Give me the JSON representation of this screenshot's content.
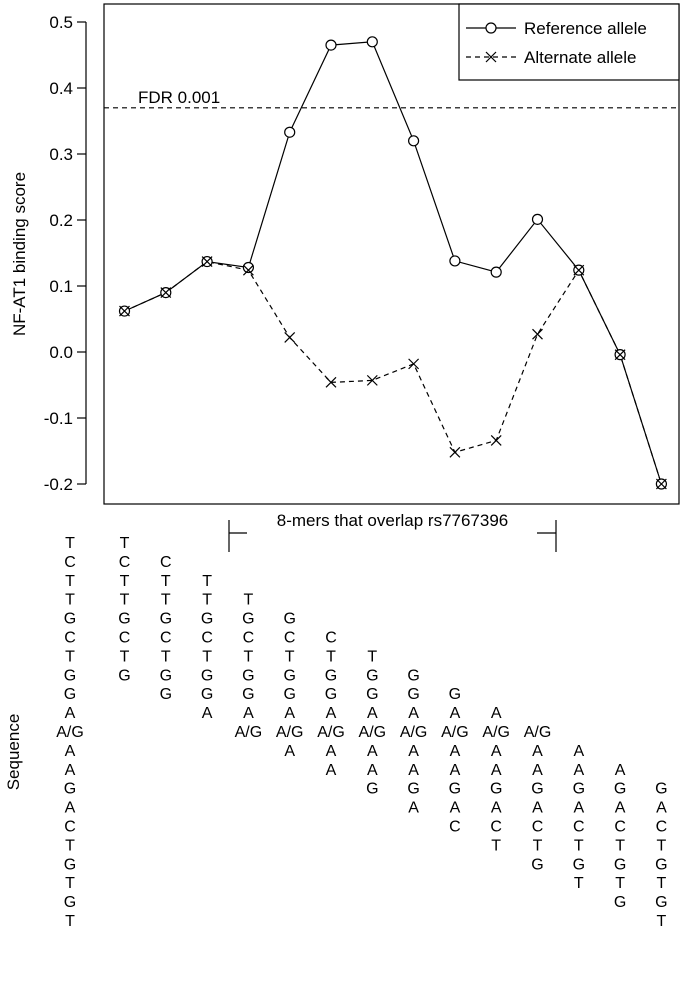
{
  "chart_data": {
    "type": "line",
    "ylabel": "NF-AT1 binding score",
    "ylim": [
      -0.22,
      0.52
    ],
    "yticks": [
      "0.5",
      "0.4",
      "0.3",
      "0.2",
      "0.1",
      "0.0",
      "-0.1",
      "-0.2"
    ],
    "ytick_values": [
      0.5,
      0.4,
      0.3,
      0.2,
      0.1,
      0.0,
      -0.1,
      -0.2
    ],
    "x": [
      1,
      2,
      3,
      4,
      5,
      6,
      7,
      8,
      9,
      10,
      11,
      12,
      13,
      14
    ],
    "series": [
      {
        "name": "Reference allele",
        "marker": "circle",
        "linestyle": "solid",
        "values": [
          0.062,
          0.09,
          0.137,
          0.128,
          0.333,
          0.465,
          0.47,
          0.32,
          0.138,
          0.121,
          0.201,
          0.124,
          -0.004,
          -0.2
        ]
      },
      {
        "name": "Alternate allele",
        "marker": "x",
        "linestyle": "dashed",
        "values": [
          0.062,
          0.09,
          0.137,
          0.124,
          0.022,
          -0.046,
          -0.043,
          -0.018,
          -0.152,
          -0.134,
          0.027,
          0.124,
          -0.004,
          -0.2
        ]
      }
    ],
    "threshold": {
      "value": 0.37,
      "label": "FDR 0.001"
    },
    "bracket": {
      "label": "8-mers that overlap rs7767396",
      "from_x": 4,
      "to_x": 11
    },
    "legend": "top-right",
    "grid": false
  },
  "sequence_panel": {
    "label": "Sequence",
    "full_sequence": [
      "T",
      "C",
      "T",
      "T",
      "G",
      "C",
      "T",
      "G",
      "G",
      "A",
      "A/G",
      "A",
      "A",
      "G",
      "A",
      "C",
      "T",
      "G",
      "T",
      "G",
      "T"
    ],
    "windows": [
      {
        "start": 0,
        "letters": [
          "T",
          "C",
          "T",
          "T",
          "G",
          "C",
          "T",
          "G"
        ]
      },
      {
        "start": 1,
        "letters": [
          "C",
          "T",
          "T",
          "G",
          "C",
          "T",
          "G",
          "G"
        ]
      },
      {
        "start": 2,
        "letters": [
          "T",
          "T",
          "G",
          "C",
          "T",
          "G",
          "G",
          "A"
        ]
      },
      {
        "start": 3,
        "letters": [
          "T",
          "G",
          "C",
          "T",
          "G",
          "G",
          "A",
          "A/G"
        ]
      },
      {
        "start": 4,
        "letters": [
          "G",
          "C",
          "T",
          "G",
          "G",
          "A",
          "A/G",
          "A"
        ]
      },
      {
        "start": 5,
        "letters": [
          "C",
          "T",
          "G",
          "G",
          "A",
          "A/G",
          "A",
          "A"
        ]
      },
      {
        "start": 6,
        "letters": [
          "T",
          "G",
          "G",
          "A",
          "A/G",
          "A",
          "A",
          "G"
        ]
      },
      {
        "start": 7,
        "letters": [
          "G",
          "G",
          "A",
          "A/G",
          "A",
          "A",
          "G",
          "A"
        ]
      },
      {
        "start": 8,
        "letters": [
          "G",
          "A",
          "A/G",
          "A",
          "A",
          "G",
          "A",
          "C"
        ]
      },
      {
        "start": 9,
        "letters": [
          "A",
          "A/G",
          "A",
          "A",
          "G",
          "A",
          "C",
          "T"
        ]
      },
      {
        "start": 10,
        "letters": [
          "A/G",
          "A",
          "A",
          "G",
          "A",
          "C",
          "T",
          "G"
        ]
      },
      {
        "start": 11,
        "letters": [
          "A",
          "A",
          "G",
          "A",
          "C",
          "T",
          "G",
          "T"
        ]
      },
      {
        "start": 12,
        "letters": [
          "A",
          "G",
          "A",
          "C",
          "T",
          "G",
          "T",
          "G"
        ]
      },
      {
        "start": 13,
        "letters": [
          "G",
          "A",
          "C",
          "T",
          "G",
          "T",
          "G",
          "T"
        ]
      }
    ]
  }
}
